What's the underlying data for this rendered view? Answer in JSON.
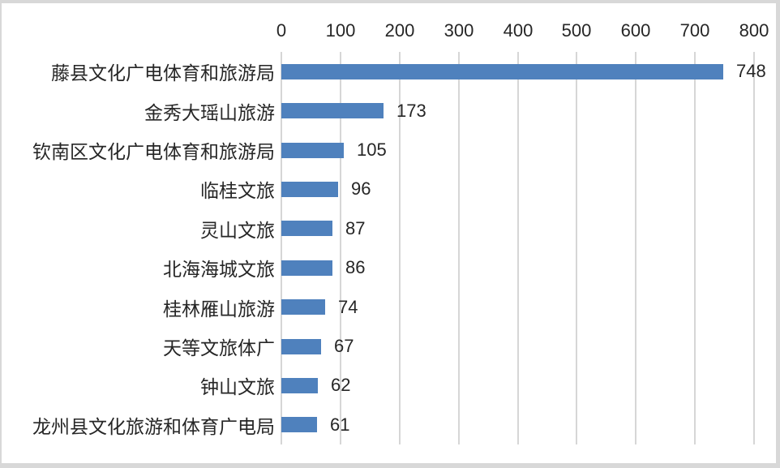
{
  "chart_data": {
    "type": "bar",
    "orientation": "horizontal",
    "title": "",
    "xlabel": "",
    "ylabel": "",
    "categories": [
      "藤县文化广电体育和旅游局",
      "金秀大瑶山旅游",
      "钦南区文化广电体育和旅游局",
      "临桂文旅",
      "灵山文旅",
      "北海海城文旅",
      "桂林雁山旅游",
      "天等文旅体广",
      "钟山文旅",
      "龙州县文化旅游和体育广电局"
    ],
    "values": [
      748,
      173,
      105,
      96,
      87,
      86,
      74,
      67,
      62,
      61
    ],
    "data_labels": [
      "748",
      "173",
      "105",
      "96",
      "87",
      "86",
      "74",
      "67",
      "62",
      "61"
    ],
    "x_ticks": [
      0,
      100,
      200,
      300,
      400,
      500,
      600,
      700,
      800
    ],
    "xlim": [
      0,
      800
    ],
    "axis_position": "top",
    "grid": true,
    "legend": false,
    "colors": {
      "bar": "#4F81BD",
      "gridline": "#D6D6D6",
      "text": "#262626",
      "plot_background": "#FFFFFF",
      "page_background": "#D8D8D8"
    }
  }
}
